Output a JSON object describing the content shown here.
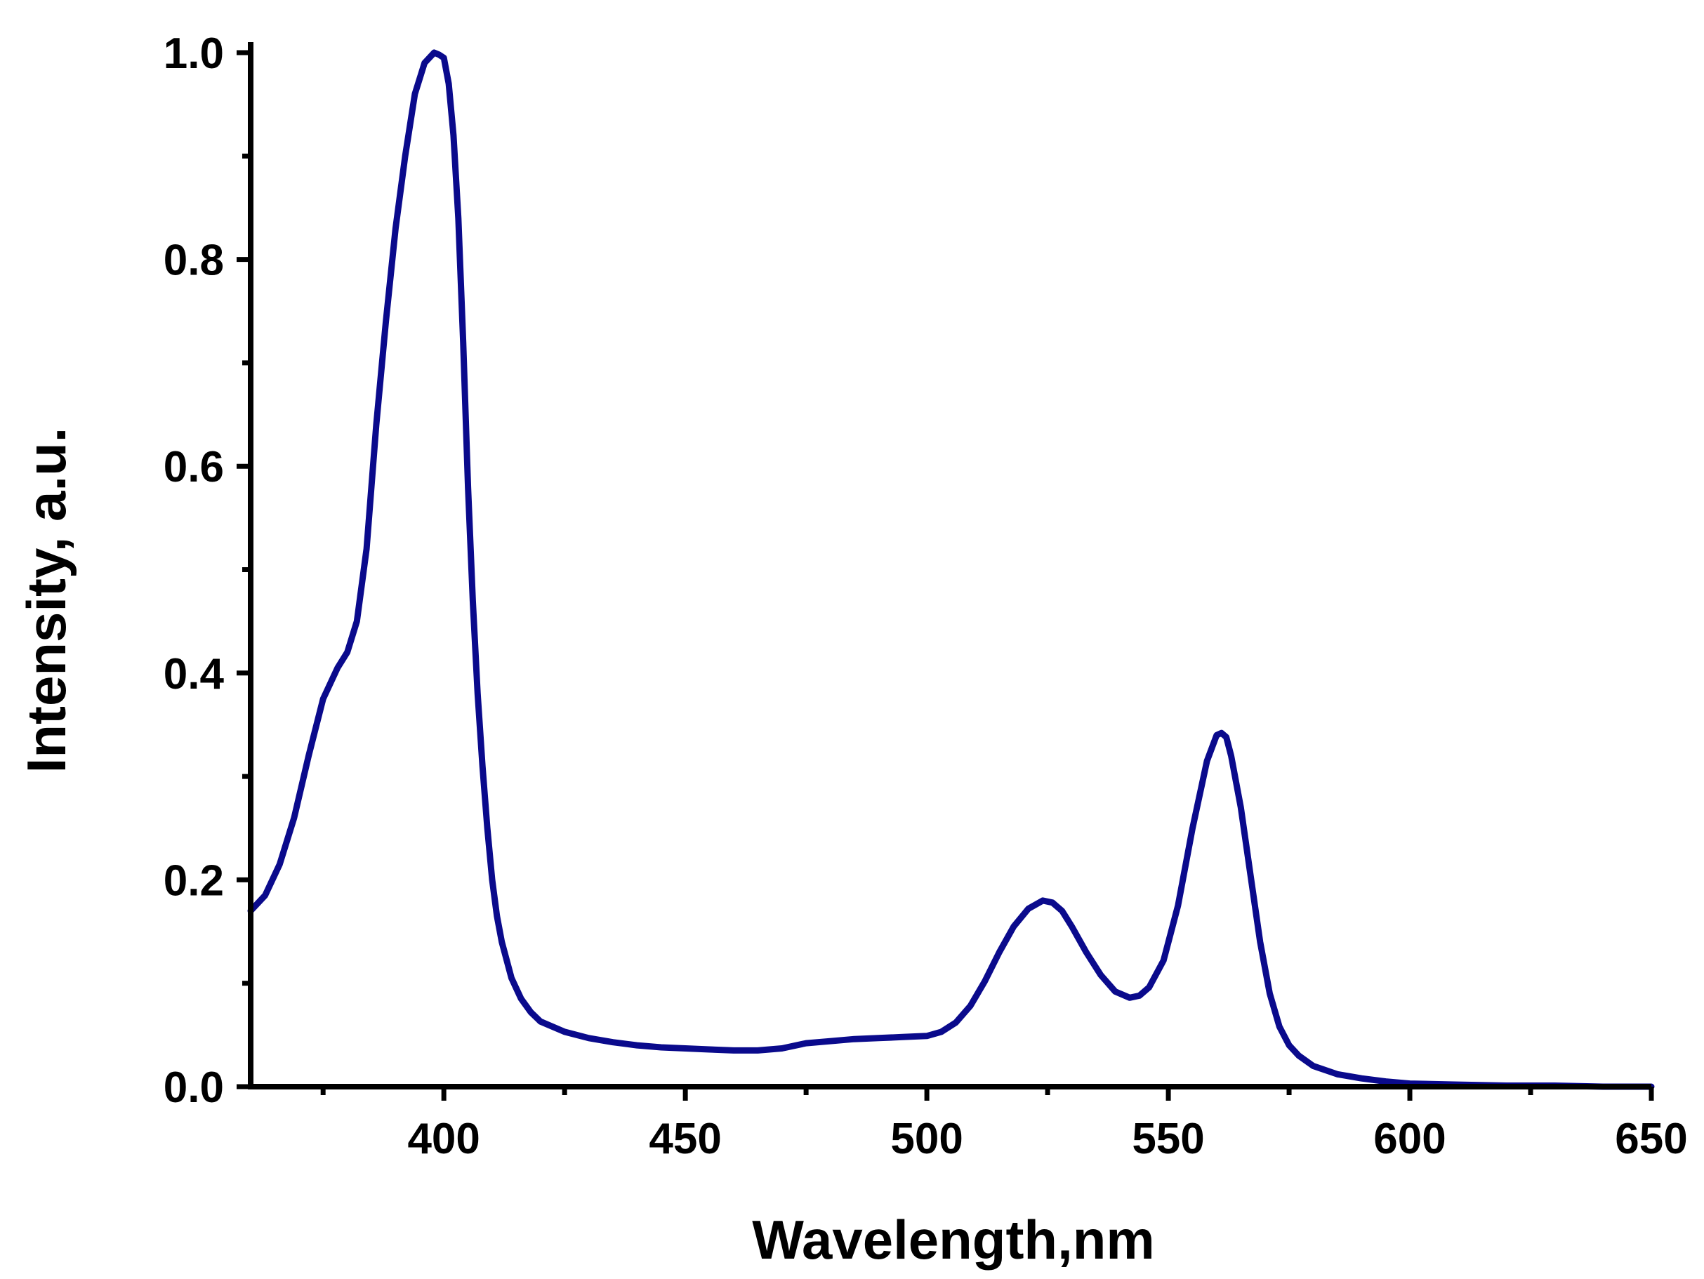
{
  "chart_data": {
    "type": "line",
    "title": "",
    "xlabel": "Wavelength,nm",
    "ylabel": "Intensity, a.u.",
    "xlim": [
      360,
      650
    ],
    "ylim": [
      0,
      1.0
    ],
    "x_ticks": [
      400,
      450,
      500,
      550,
      600,
      650
    ],
    "x_tick_labels": [
      "400",
      "450",
      "500",
      "550",
      "600",
      "650"
    ],
    "x_minor_ticks": [
      375,
      425,
      475,
      525,
      575,
      625
    ],
    "y_ticks": [
      0.0,
      0.2,
      0.4,
      0.6,
      0.8,
      1.0
    ],
    "y_tick_labels": [
      "0.0",
      "0.2",
      "0.4",
      "0.6",
      "0.8",
      "1.0"
    ],
    "y_minor_ticks": [
      0.1,
      0.3,
      0.5,
      0.7,
      0.9
    ],
    "grid": false,
    "legend": "none",
    "series": [
      {
        "color": "#0a0a8c",
        "x": [
          360,
          363,
          366,
          369,
          372,
          375,
          378,
          380,
          382,
          384,
          386,
          388,
          390,
          392,
          394,
          396,
          398,
          399,
          400,
          401,
          402,
          403,
          404,
          405,
          406,
          407,
          408,
          409,
          410,
          411,
          412,
          414,
          416,
          418,
          420,
          425,
          430,
          435,
          440,
          445,
          450,
          455,
          460,
          465,
          470,
          475,
          480,
          485,
          490,
          495,
          500,
          503,
          506,
          509,
          512,
          515,
          518,
          521,
          524,
          526,
          528,
          530,
          533,
          536,
          539,
          542,
          544,
          546,
          549,
          552,
          555,
          558,
          560,
          561,
          562,
          563,
          565,
          567,
          569,
          571,
          573,
          575,
          577,
          580,
          585,
          590,
          595,
          600,
          610,
          620,
          630,
          640,
          650
        ],
        "y": [
          0.17,
          0.185,
          0.215,
          0.26,
          0.32,
          0.375,
          0.405,
          0.42,
          0.45,
          0.52,
          0.64,
          0.74,
          0.83,
          0.9,
          0.96,
          0.99,
          1.0,
          0.998,
          0.995,
          0.97,
          0.92,
          0.84,
          0.72,
          0.58,
          0.47,
          0.38,
          0.31,
          0.25,
          0.2,
          0.165,
          0.14,
          0.105,
          0.085,
          0.072,
          0.063,
          0.053,
          0.047,
          0.043,
          0.04,
          0.038,
          0.037,
          0.036,
          0.035,
          0.035,
          0.037,
          0.042,
          0.044,
          0.046,
          0.047,
          0.048,
          0.049,
          0.053,
          0.062,
          0.078,
          0.102,
          0.13,
          0.155,
          0.172,
          0.18,
          0.178,
          0.17,
          0.155,
          0.13,
          0.108,
          0.092,
          0.086,
          0.088,
          0.096,
          0.122,
          0.175,
          0.25,
          0.315,
          0.34,
          0.342,
          0.338,
          0.32,
          0.27,
          0.205,
          0.14,
          0.09,
          0.058,
          0.04,
          0.03,
          0.02,
          0.012,
          0.008,
          0.005,
          0.003,
          0.002,
          0.001,
          0.001,
          0.0,
          0.0
        ]
      }
    ]
  }
}
